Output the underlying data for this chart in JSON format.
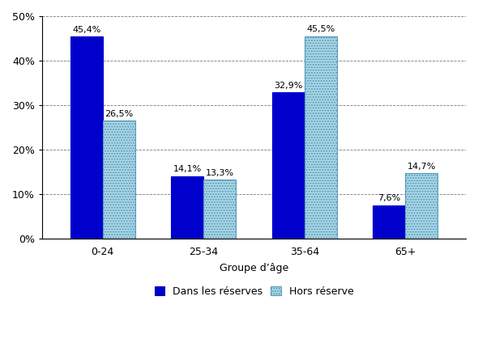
{
  "categories": [
    "0-24",
    "25-34",
    "35-64",
    "65+"
  ],
  "series": [
    {
      "label": "Dans les réserves",
      "values": [
        45.4,
        14.1,
        32.9,
        7.6
      ],
      "color": "#0000CC",
      "hatch": null,
      "edgecolor": "#0000CC"
    },
    {
      "label": "Hors réserve",
      "values": [
        26.5,
        13.3,
        45.5,
        14.7
      ],
      "color": "#add8e6",
      "hatch": ".....",
      "edgecolor": "#5599bb"
    }
  ],
  "xlabel": "Groupe d’âge",
  "ylim": [
    0,
    50
  ],
  "yticks": [
    0,
    10,
    20,
    30,
    40,
    50
  ],
  "ytick_labels": [
    "0%",
    "10%",
    "20%",
    "30%",
    "40%",
    "50%"
  ],
  "bar_width": 0.32,
  "background_color": "#ffffff",
  "grid_color": "#555555",
  "label_fontsize": 8,
  "axis_fontsize": 9,
  "legend_fontsize": 9,
  "tick_label_fontsize": 9
}
